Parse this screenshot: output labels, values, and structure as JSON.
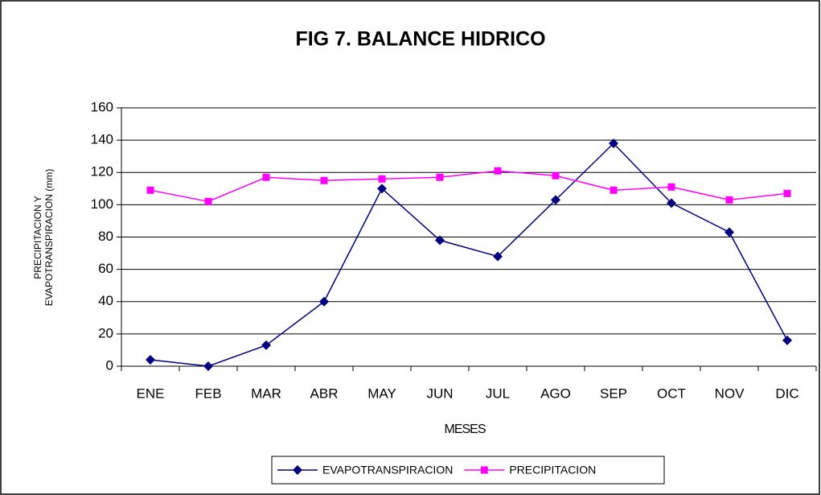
{
  "chart_data": {
    "type": "line",
    "title": "FIG 7. BALANCE HIDRICO",
    "xlabel": "MESES",
    "ylabel": [
      "PRECIPITACION Y",
      "EVAPOTRANSPIRACION (mm)"
    ],
    "categories": [
      "ENE",
      "FEB",
      "MAR",
      "ABR",
      "MAY",
      "JUN",
      "JUL",
      "AGO",
      "SEP",
      "OCT",
      "NOV",
      "DIC"
    ],
    "series": [
      {
        "name": "EVAPOTRANSPIRACION",
        "color": "#000080",
        "marker": "diamond",
        "values": [
          4,
          0,
          13,
          40,
          110,
          78,
          68,
          103,
          138,
          101,
          83,
          16
        ]
      },
      {
        "name": "PRECIPITACION",
        "color": "#ff00ff",
        "marker": "square",
        "values": [
          109,
          102,
          117,
          115,
          116,
          117,
          121,
          118,
          109,
          111,
          103,
          107
        ]
      }
    ],
    "ylim": [
      0,
      160
    ],
    "yticks": [
      0,
      20,
      40,
      60,
      80,
      100,
      120,
      140,
      160
    ],
    "grid": true,
    "legend": "bottom"
  }
}
